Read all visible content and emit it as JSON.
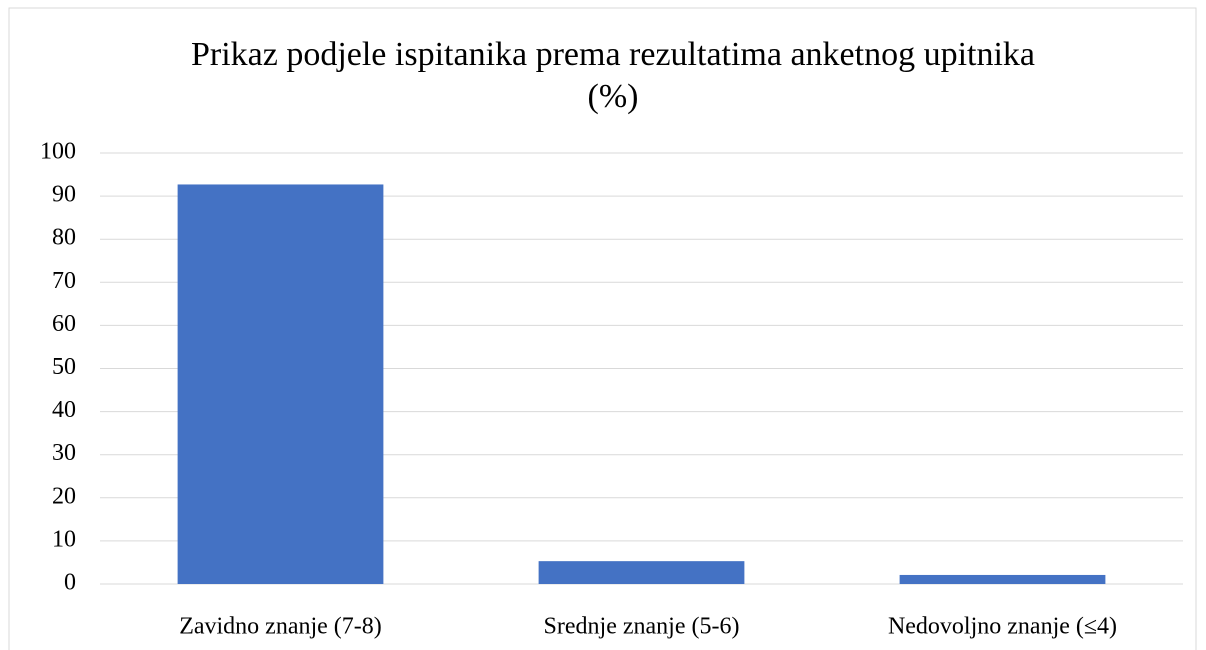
{
  "chart_data": {
    "type": "bar",
    "title": "Prikaz podjele ispitanika prema rezultatima anketnog upitnika (%)",
    "categories": [
      "Zavidno znanje (7-8)",
      "Srednje znanje (5-6)",
      "Nedovoljno znanje (≤4)"
    ],
    "values": [
      92.7,
      5.3,
      2.1
    ],
    "color": "#4472c4",
    "ylim": [
      0,
      100
    ],
    "yticks": [
      0,
      10,
      20,
      30,
      40,
      50,
      60,
      70,
      80,
      90,
      100
    ],
    "grid": true
  }
}
